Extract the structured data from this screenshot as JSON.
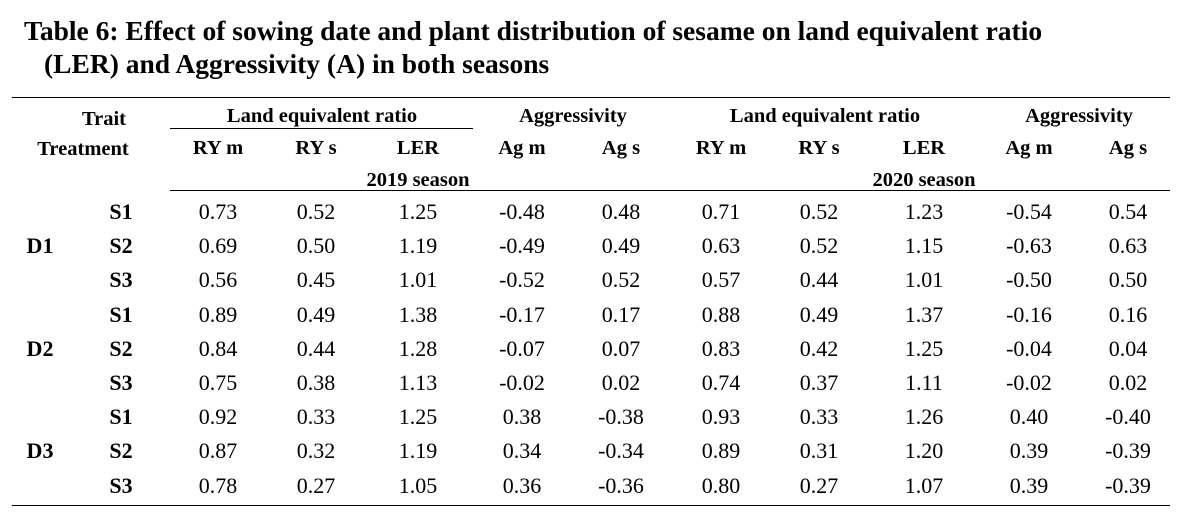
{
  "caption": {
    "line1": "Table 6: Effect of sowing date and plant distribution of sesame on land equivalent ratio",
    "line2": "(LER) and Aggressivity (A) in both seasons"
  },
  "header": {
    "trait": "Trait",
    "treatment": "Treatment",
    "groups": [
      "Land equivalent ratio",
      "Aggressivity",
      "Land equivalent ratio",
      "Aggressivity"
    ],
    "columns": [
      "RY m",
      "RY s",
      "LER",
      "Ag m",
      "Ag s",
      "RY m",
      "RY s",
      "LER",
      "Ag m",
      "Ag s"
    ],
    "seasons": [
      "2019 season",
      "2020 season"
    ]
  },
  "groups": [
    {
      "label": "D1",
      "rows": [
        {
          "s": "S1",
          "values": [
            "0.73",
            "0.52",
            "1.25",
            "-0.48",
            "0.48",
            "0.71",
            "0.52",
            "1.23",
            "-0.54",
            "0.54"
          ]
        },
        {
          "s": "S2",
          "values": [
            "0.69",
            "0.50",
            "1.19",
            "-0.49",
            "0.49",
            "0.63",
            "0.52",
            "1.15",
            "-0.63",
            "0.63"
          ]
        },
        {
          "s": "S3",
          "values": [
            "0.56",
            "0.45",
            "1.01",
            "-0.52",
            "0.52",
            "0.57",
            "0.44",
            "1.01",
            "-0.50",
            "0.50"
          ]
        }
      ]
    },
    {
      "label": "D2",
      "rows": [
        {
          "s": "S1",
          "values": [
            "0.89",
            "0.49",
            "1.38",
            "-0.17",
            "0.17",
            "0.88",
            "0.49",
            "1.37",
            "-0.16",
            "0.16"
          ]
        },
        {
          "s": "S2",
          "values": [
            "0.84",
            "0.44",
            "1.28",
            "-0.07",
            "0.07",
            "0.83",
            "0.42",
            "1.25",
            "-0.04",
            "0.04"
          ]
        },
        {
          "s": "S3",
          "values": [
            "0.75",
            "0.38",
            "1.13",
            "-0.02",
            "0.02",
            "0.74",
            "0.37",
            "1.11",
            "-0.02",
            "0.02"
          ]
        }
      ]
    },
    {
      "label": "D3",
      "rows": [
        {
          "s": "S1",
          "values": [
            "0.92",
            "0.33",
            "1.25",
            "0.38",
            "-0.38",
            "0.93",
            "0.33",
            "1.26",
            "0.40",
            "-0.40"
          ]
        },
        {
          "s": "S2",
          "values": [
            "0.87",
            "0.32",
            "1.19",
            "0.34",
            "-0.34",
            "0.89",
            "0.31",
            "1.20",
            "0.39",
            "-0.39"
          ]
        },
        {
          "s": "S3",
          "values": [
            "0.78",
            "0.27",
            "1.05",
            "0.36",
            "-0.36",
            "0.80",
            "0.27",
            "1.07",
            "0.39",
            "-0.39"
          ]
        }
      ]
    }
  ]
}
